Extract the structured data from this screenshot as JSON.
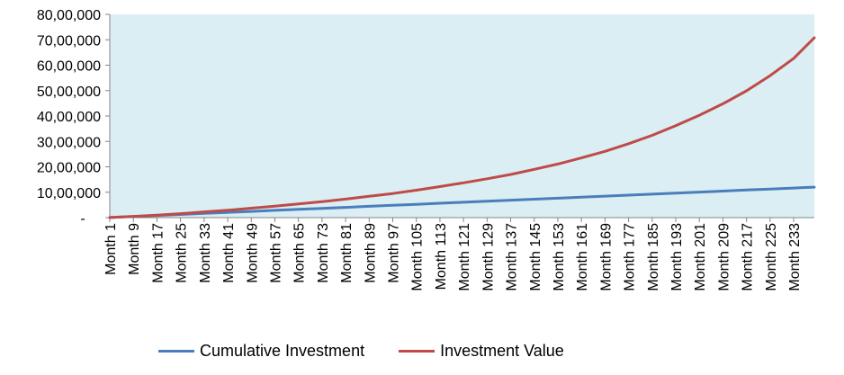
{
  "chart_data": {
    "type": "line",
    "title": "",
    "xlabel": "",
    "ylabel": "",
    "ylim": [
      0,
      8000000
    ],
    "y_ticks": [
      {
        "value": 0,
        "label": "-"
      },
      {
        "value": 1000000,
        "label": "10,00,000"
      },
      {
        "value": 2000000,
        "label": "20,00,000"
      },
      {
        "value": 3000000,
        "label": "30,00,000"
      },
      {
        "value": 4000000,
        "label": "40,00,000"
      },
      {
        "value": 5000000,
        "label": "50,00,000"
      },
      {
        "value": 6000000,
        "label": "60,00,000"
      },
      {
        "value": 7000000,
        "label": "70,00,000"
      },
      {
        "value": 8000000,
        "label": "80,00,000"
      }
    ],
    "x_tick_labels": [
      "Month 1",
      "Month 9",
      "Month 17",
      "Month 25",
      "Month 33",
      "Month 41",
      "Month 49",
      "Month 57",
      "Month 65",
      "Month 73",
      "Month 81",
      "Month 89",
      "Month 97",
      "Month 105",
      "Month 113",
      "Month 121",
      "Month 129",
      "Month 137",
      "Month 145",
      "Month 153",
      "Month 161",
      "Month 169",
      "Month 177",
      "Month 185",
      "Month 193",
      "Month 201",
      "Month 209",
      "Month 217",
      "Month 225",
      "Month 233"
    ],
    "x_months": [
      1,
      9,
      17,
      25,
      33,
      41,
      49,
      57,
      65,
      73,
      81,
      89,
      97,
      105,
      113,
      121,
      129,
      137,
      145,
      153,
      161,
      169,
      177,
      185,
      193,
      201,
      209,
      217,
      225,
      233,
      240
    ],
    "grid": false,
    "legend_position": "bottom",
    "plot_background": "#dbeef4",
    "series": [
      {
        "name": "Cumulative Investment",
        "color": "#4a7ebb",
        "values": [
          5000,
          45000,
          85000,
          125000,
          165000,
          205000,
          245000,
          285000,
          325000,
          365000,
          405000,
          445000,
          485000,
          525000,
          565000,
          605000,
          645000,
          685000,
          725000,
          765000,
          805000,
          845000,
          885000,
          925000,
          965000,
          1005000,
          1045000,
          1085000,
          1125000,
          1165000,
          1200000
        ]
      },
      {
        "name": "Investment Value",
        "color": "#be4b48",
        "values": [
          5000,
          49000,
          100000,
          155000,
          225000,
          290000,
          370000,
          450000,
          540000,
          630000,
          730000,
          840000,
          950000,
          1080000,
          1220000,
          1370000,
          1530000,
          1700000,
          1900000,
          2110000,
          2350000,
          2610000,
          2910000,
          3240000,
          3620000,
          4030000,
          4480000,
          4990000,
          5590000,
          6270000,
          7080000
        ]
      }
    ]
  }
}
